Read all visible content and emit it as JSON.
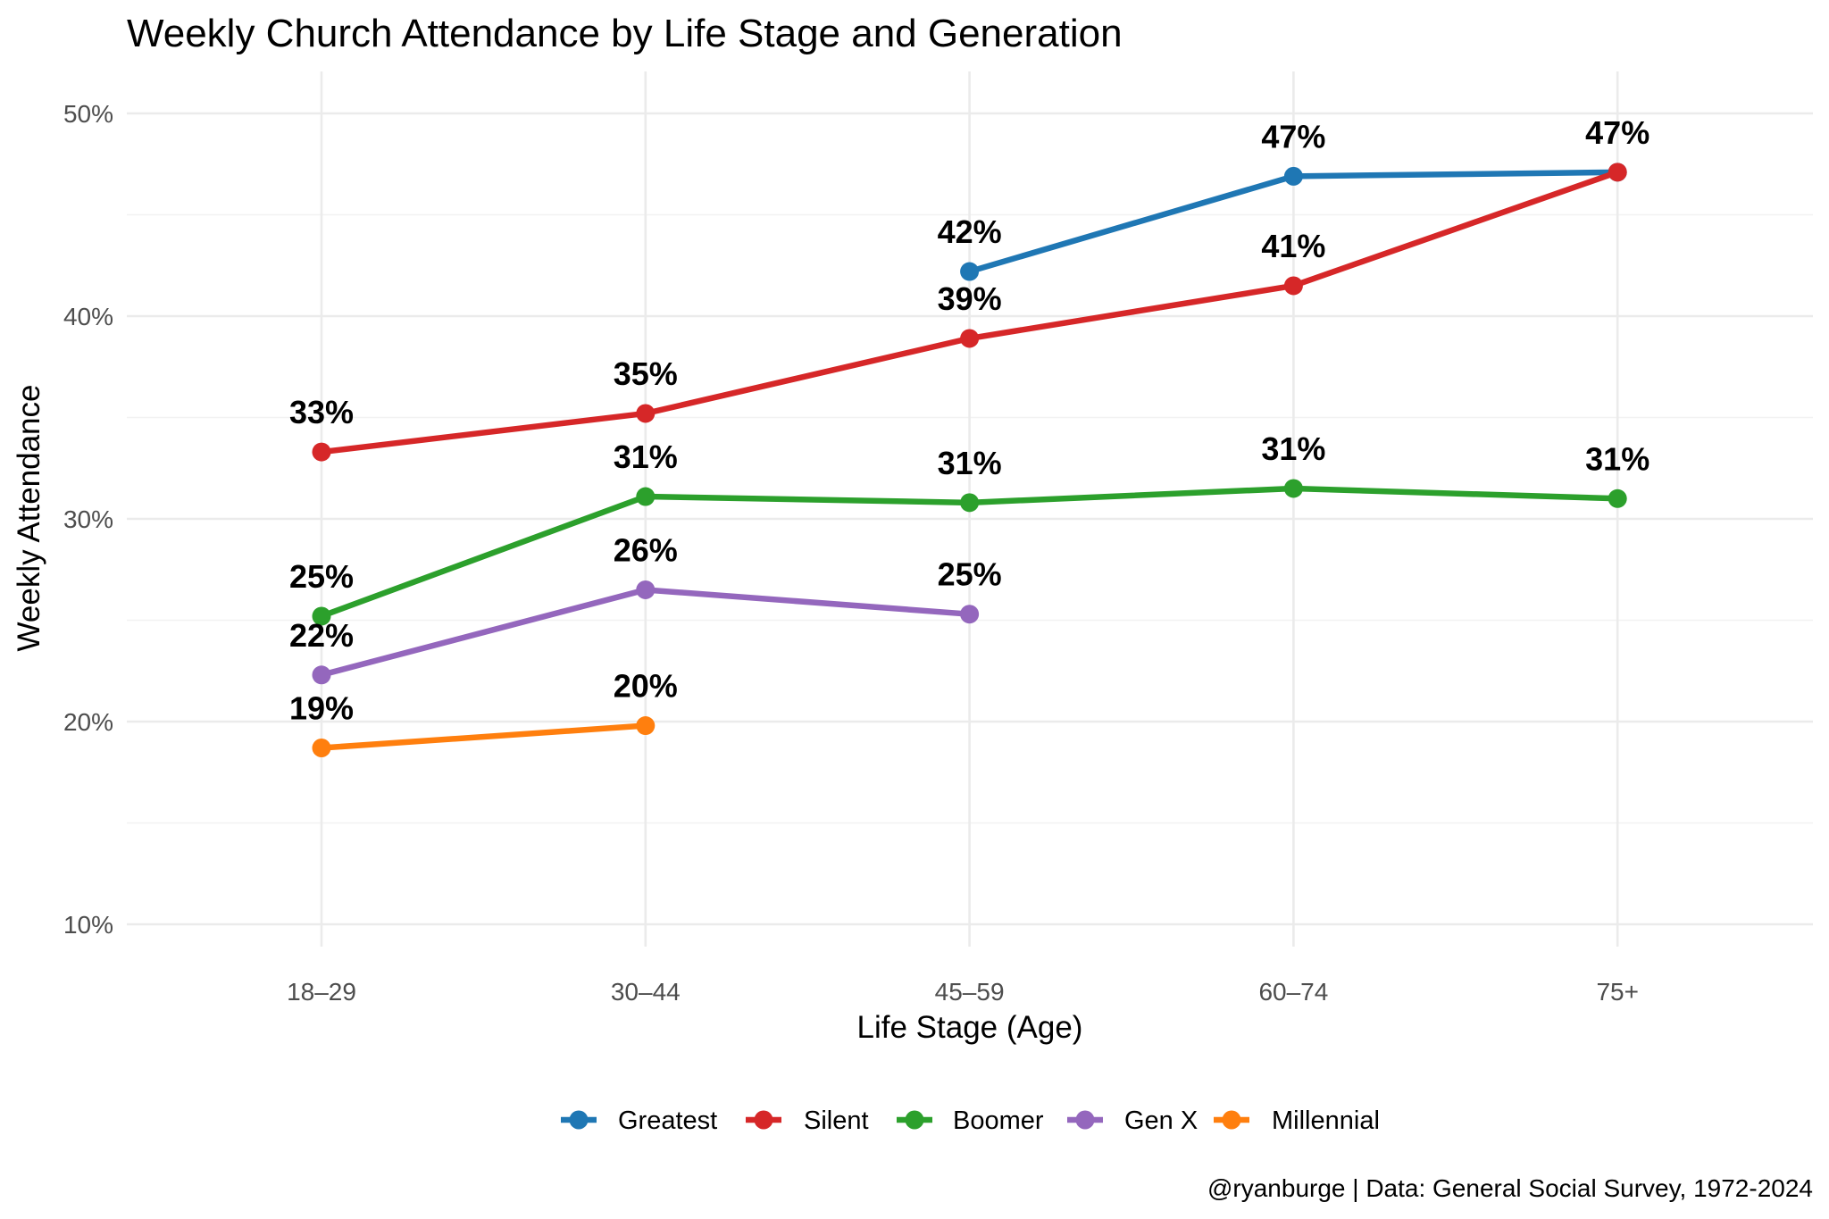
{
  "chart_data": {
    "type": "line",
    "title": "Weekly Church Attendance by Life Stage and Generation",
    "xlabel": "Life Stage (Age)",
    "ylabel": "Weekly Attendance",
    "categories": [
      "18–29",
      "30–44",
      "45–59",
      "60–74",
      "75+"
    ],
    "ylim": [
      8,
      52
    ],
    "yticks": [
      10,
      20,
      30,
      40,
      50
    ],
    "ytick_labels": [
      "10%",
      "20%",
      "30%",
      "40%",
      "50%"
    ],
    "grid": true,
    "legend_position": "bottom",
    "series": [
      {
        "name": "Greatest",
        "color": "#1f77b4",
        "values": [
          null,
          null,
          42.2,
          46.9,
          47.1
        ],
        "labels": [
          null,
          null,
          "42%",
          "47%",
          null
        ]
      },
      {
        "name": "Silent",
        "color": "#d62728",
        "values": [
          33.3,
          35.2,
          38.9,
          41.5,
          47.1
        ],
        "labels": [
          "33%",
          "35%",
          "39%",
          "41%",
          "47%"
        ]
      },
      {
        "name": "Boomer",
        "color": "#2ca02c",
        "values": [
          25.2,
          31.1,
          30.8,
          31.5,
          31.0
        ],
        "labels": [
          "25%",
          "31%",
          "31%",
          "31%",
          "31%"
        ]
      },
      {
        "name": "Gen X",
        "color": "#9467bd",
        "values": [
          22.3,
          26.5,
          25.3,
          null,
          null
        ],
        "labels": [
          "22%",
          "26%",
          "25%",
          null,
          null
        ]
      },
      {
        "name": "Millennial",
        "color": "#ff7f0e",
        "values": [
          18.7,
          19.8,
          null,
          null,
          null
        ],
        "labels": [
          "19%",
          "20%",
          null,
          null,
          null
        ]
      }
    ],
    "caption": "@ryanburge | Data: General Social Survey, 1972-2024"
  }
}
